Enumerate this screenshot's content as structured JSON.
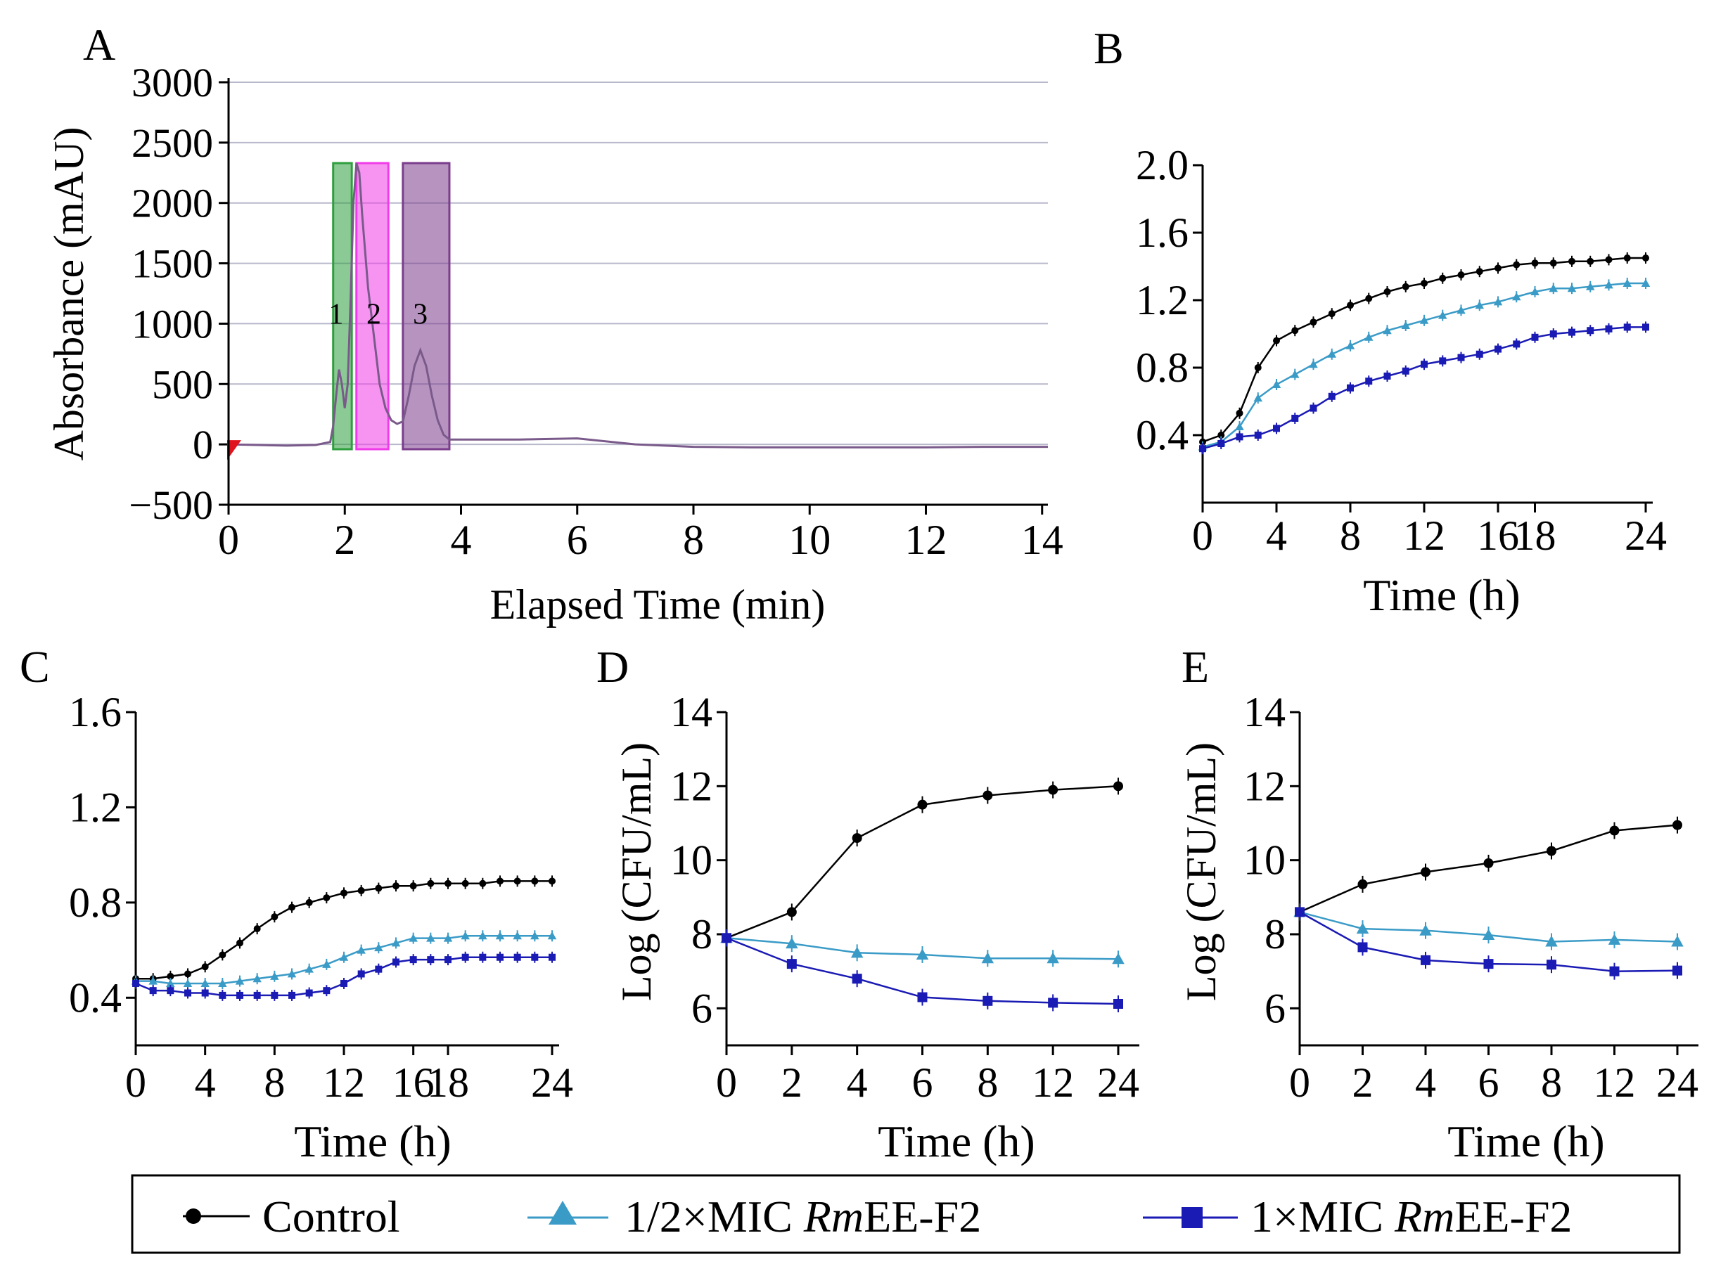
{
  "colors": {
    "control": "#000000",
    "half_mic": "#3a9bc7",
    "one_mic": "#1a1ab4",
    "trace": "#7a5a8a",
    "peak1": "#2e9e3e",
    "peak2": "#f03ce8",
    "peak3": "#7b3d8c",
    "grid": "#b8b8cc",
    "start_marker": "#e0141e"
  },
  "legend": {
    "control": "Control",
    "half_mic_prefix": "1/2×MIC ",
    "one_mic_prefix": "1×MIC ",
    "compound_italic": "Rm",
    "compound_rest": "EE-F2"
  },
  "chart_data": [
    {
      "panel": "A",
      "type": "line",
      "title": "",
      "xlabel": "Elapsed Time (min)",
      "ylabel": "Absorbance (mAU)",
      "xlim": [
        0,
        14.1
      ],
      "ylim": [
        -500,
        3000
      ],
      "xticks": [
        0,
        2,
        4,
        6,
        8,
        10,
        12,
        14
      ],
      "yticks": [
        3000,
        2500,
        2000,
        1500,
        1000,
        500,
        0,
        -500
      ],
      "ytick_labels": [
        "3000",
        "2500",
        "2000",
        "1500",
        "1000",
        "500",
        "0",
        "−500"
      ],
      "grid": true,
      "trace": {
        "x": [
          0,
          0.5,
          1.0,
          1.5,
          1.75,
          1.8,
          1.85,
          1.9,
          1.95,
          2.0,
          2.05,
          2.1,
          2.15,
          2.2,
          2.25,
          2.3,
          2.4,
          2.5,
          2.6,
          2.7,
          2.8,
          2.9,
          3.0,
          3.1,
          3.2,
          3.3,
          3.4,
          3.5,
          3.6,
          3.7,
          3.8,
          4.0,
          5.0,
          6.0,
          7.0,
          8.0,
          9.0,
          10.0,
          11.0,
          12.0,
          13.0,
          14.1
        ],
        "y": [
          0,
          -5,
          -10,
          -5,
          20,
          150,
          400,
          620,
          500,
          300,
          500,
          1200,
          2000,
          2330,
          2250,
          1900,
          1300,
          900,
          500,
          300,
          200,
          170,
          190,
          400,
          650,
          780,
          650,
          400,
          200,
          80,
          40,
          40,
          40,
          50,
          0,
          -20,
          -25,
          -25,
          -25,
          -25,
          -20,
          -20
        ]
      },
      "peaks": [
        {
          "label": "1",
          "x_start": 1.8,
          "x_end": 2.12,
          "y_top": 2330
        },
        {
          "label": "2",
          "x_start": 2.2,
          "x_end": 2.75,
          "y_top": 2330
        },
        {
          "label": "3",
          "x_start": 3.0,
          "x_end": 3.8,
          "y_top": 2330
        }
      ]
    },
    {
      "panel": "B",
      "type": "line",
      "xlabel": "Time (h)",
      "ylabel": "",
      "ylim": [
        0,
        2.0
      ],
      "yticks": [
        2.0,
        1.6,
        1.2,
        0.8,
        0.4
      ],
      "ytick_labels": [
        "2.0",
        "1.6",
        "1.2",
        "0.8",
        "0.4"
      ],
      "xlim": [
        0,
        24
      ],
      "xticks": [
        0,
        4,
        8,
        12,
        16,
        18,
        24
      ],
      "xtick_labels": [
        "0",
        "4",
        "8",
        "12",
        "16",
        "18",
        "24"
      ],
      "grid": false,
      "series": [
        {
          "name": "Control",
          "x": [
            0,
            1,
            2,
            3,
            4,
            5,
            6,
            7,
            8,
            9,
            10,
            11,
            12,
            13,
            14,
            15,
            16,
            17,
            18,
            19,
            20,
            21,
            22,
            23,
            24
          ],
          "values": [
            0.36,
            0.4,
            0.53,
            0.8,
            0.96,
            1.02,
            1.07,
            1.12,
            1.17,
            1.21,
            1.25,
            1.28,
            1.3,
            1.33,
            1.35,
            1.37,
            1.39,
            1.41,
            1.42,
            1.42,
            1.43,
            1.43,
            1.44,
            1.45,
            1.45
          ]
        },
        {
          "name": "1/2×MIC RmEE-F2",
          "x": [
            0,
            1,
            2,
            3,
            4,
            5,
            6,
            7,
            8,
            9,
            10,
            11,
            12,
            13,
            14,
            15,
            16,
            17,
            18,
            19,
            20,
            21,
            22,
            23,
            24
          ],
          "values": [
            0.33,
            0.36,
            0.45,
            0.62,
            0.7,
            0.76,
            0.82,
            0.88,
            0.93,
            0.98,
            1.02,
            1.05,
            1.08,
            1.11,
            1.14,
            1.17,
            1.19,
            1.22,
            1.25,
            1.27,
            1.27,
            1.28,
            1.29,
            1.3,
            1.3
          ]
        },
        {
          "name": "1×MIC RmEE-F2",
          "x": [
            0,
            1,
            2,
            3,
            4,
            5,
            6,
            7,
            8,
            9,
            10,
            11,
            12,
            13,
            14,
            15,
            16,
            17,
            18,
            19,
            20,
            21,
            22,
            23,
            24
          ],
          "values": [
            0.32,
            0.35,
            0.39,
            0.4,
            0.44,
            0.5,
            0.56,
            0.63,
            0.68,
            0.72,
            0.75,
            0.78,
            0.82,
            0.84,
            0.86,
            0.88,
            0.91,
            0.94,
            0.98,
            1.0,
            1.01,
            1.02,
            1.03,
            1.04,
            1.04
          ]
        }
      ]
    },
    {
      "panel": "C",
      "type": "line",
      "xlabel": "Time (h)",
      "ylabel": "",
      "ylim": [
        0.2,
        1.6
      ],
      "yticks": [
        1.6,
        1.2,
        0.8,
        0.4
      ],
      "ytick_labels": [
        "1.6",
        "1.2",
        "0.8",
        "0.4"
      ],
      "xlim": [
        0,
        24
      ],
      "xticks": [
        0,
        4,
        8,
        12,
        16,
        18,
        24
      ],
      "xtick_labels": [
        "0",
        "4",
        "8",
        "12",
        "16",
        "18",
        "24"
      ],
      "grid": false,
      "series": [
        {
          "name": "Control",
          "x": [
            0,
            1,
            2,
            3,
            4,
            5,
            6,
            7,
            8,
            9,
            10,
            11,
            12,
            13,
            14,
            15,
            16,
            17,
            18,
            19,
            20,
            21,
            22,
            23,
            24
          ],
          "values": [
            0.48,
            0.48,
            0.49,
            0.5,
            0.53,
            0.58,
            0.63,
            0.69,
            0.74,
            0.78,
            0.8,
            0.82,
            0.84,
            0.85,
            0.86,
            0.87,
            0.87,
            0.88,
            0.88,
            0.88,
            0.88,
            0.89,
            0.89,
            0.89,
            0.89
          ]
        },
        {
          "name": "1/2×MIC RmEE-F2",
          "x": [
            0,
            1,
            2,
            3,
            4,
            5,
            6,
            7,
            8,
            9,
            10,
            11,
            12,
            13,
            14,
            15,
            16,
            17,
            18,
            19,
            20,
            21,
            22,
            23,
            24
          ],
          "values": [
            0.47,
            0.47,
            0.46,
            0.46,
            0.46,
            0.46,
            0.47,
            0.48,
            0.49,
            0.5,
            0.52,
            0.54,
            0.57,
            0.6,
            0.61,
            0.63,
            0.65,
            0.65,
            0.65,
            0.66,
            0.66,
            0.66,
            0.66,
            0.66,
            0.66
          ]
        },
        {
          "name": "1×MIC RmEE-F2",
          "x": [
            0,
            1,
            2,
            3,
            4,
            5,
            6,
            7,
            8,
            9,
            10,
            11,
            12,
            13,
            14,
            15,
            16,
            17,
            18,
            19,
            20,
            21,
            22,
            23,
            24
          ],
          "values": [
            0.46,
            0.43,
            0.43,
            0.42,
            0.42,
            0.41,
            0.41,
            0.41,
            0.41,
            0.41,
            0.42,
            0.43,
            0.46,
            0.5,
            0.52,
            0.55,
            0.56,
            0.56,
            0.56,
            0.57,
            0.57,
            0.57,
            0.57,
            0.57,
            0.57
          ]
        }
      ]
    },
    {
      "panel": "D",
      "type": "line",
      "xlabel": "Time (h)",
      "ylabel": "Log (CFU/mL)",
      "ylim": [
        5,
        14
      ],
      "yticks": [
        14,
        12,
        10,
        8,
        6
      ],
      "ytick_labels": [
        "14",
        "12",
        "10",
        "8",
        "6"
      ],
      "xticks": [
        "0",
        "2",
        "4",
        "6",
        "8",
        "12",
        "24"
      ],
      "categories": [
        "0",
        "2",
        "4",
        "6",
        "8",
        "12",
        "24"
      ],
      "grid": false,
      "series": [
        {
          "name": "Control",
          "values": [
            7.9,
            8.6,
            10.6,
            11.5,
            11.75,
            11.9,
            12.0
          ]
        },
        {
          "name": "1/2×MIC RmEE-F2",
          "values": [
            7.9,
            7.75,
            7.5,
            7.45,
            7.35,
            7.35,
            7.33
          ]
        },
        {
          "name": "1×MIC RmEE-F2",
          "values": [
            7.9,
            7.2,
            6.8,
            6.3,
            6.2,
            6.15,
            6.12
          ]
        }
      ]
    },
    {
      "panel": "E",
      "type": "line",
      "xlabel": "Time (h)",
      "ylabel": "Log (CFU/mL)",
      "ylim": [
        5,
        14
      ],
      "yticks": [
        14,
        12,
        10,
        8,
        6
      ],
      "ytick_labels": [
        "14",
        "12",
        "10",
        "8",
        "6"
      ],
      "xticks": [
        "0",
        "2",
        "4",
        "6",
        "8",
        "12",
        "24"
      ],
      "categories": [
        "0",
        "2",
        "4",
        "6",
        "8",
        "12",
        "24"
      ],
      "grid": false,
      "series": [
        {
          "name": "Control",
          "values": [
            8.6,
            9.35,
            9.68,
            9.92,
            10.25,
            10.8,
            10.95
          ]
        },
        {
          "name": "1/2×MIC RmEE-F2",
          "values": [
            8.6,
            8.15,
            8.1,
            7.98,
            7.8,
            7.85,
            7.8
          ]
        },
        {
          "name": "1×MIC RmEE-F2",
          "values": [
            8.6,
            7.65,
            7.3,
            7.2,
            7.18,
            7.0,
            7.02
          ]
        }
      ]
    }
  ]
}
